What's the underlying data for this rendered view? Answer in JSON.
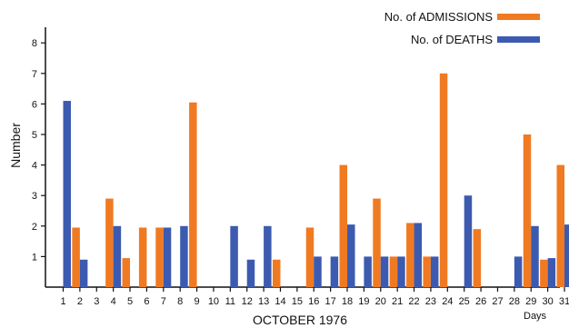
{
  "chart_data": {
    "type": "bar",
    "xlabel": "OCTOBER 1976",
    "x_unit_label": "Days",
    "ylabel": "Number",
    "ylim": [
      0,
      8.5
    ],
    "yticks": [
      1,
      2,
      3,
      4,
      5,
      6,
      7,
      8
    ],
    "categories": [
      "1",
      "2",
      "3",
      "4",
      "5",
      "6",
      "7",
      "8",
      "9",
      "10",
      "11",
      "12",
      "13",
      "14",
      "15",
      "16",
      "17",
      "18",
      "19",
      "20",
      "21",
      "22",
      "23",
      "24",
      "25",
      "26",
      "27",
      "28",
      "29",
      "30",
      "31"
    ],
    "legend_position": "top-right",
    "series": [
      {
        "name": "No. of ADMISSIONS",
        "color": "#f07a22",
        "values": [
          0,
          1.95,
          0,
          2.9,
          0.95,
          1.95,
          1.95,
          0,
          6.05,
          0,
          0,
          0,
          0,
          0.9,
          0,
          1.95,
          0,
          4.0,
          0,
          2.9,
          1.0,
          2.1,
          1.0,
          7.0,
          0,
          1.9,
          0,
          0,
          5.0,
          0.9,
          4.0
        ]
      },
      {
        "name": "No. of DEATHS",
        "color": "#3c5bb0",
        "values": [
          6.1,
          0.9,
          0,
          2.0,
          0,
          0,
          1.95,
          2.0,
          0,
          0,
          2.0,
          0.9,
          2.0,
          0,
          0,
          1.0,
          1.0,
          2.05,
          1.0,
          1.0,
          1.0,
          2.1,
          1.0,
          0,
          3.0,
          0,
          0,
          1.0,
          2.0,
          0.95,
          2.05
        ]
      }
    ]
  }
}
